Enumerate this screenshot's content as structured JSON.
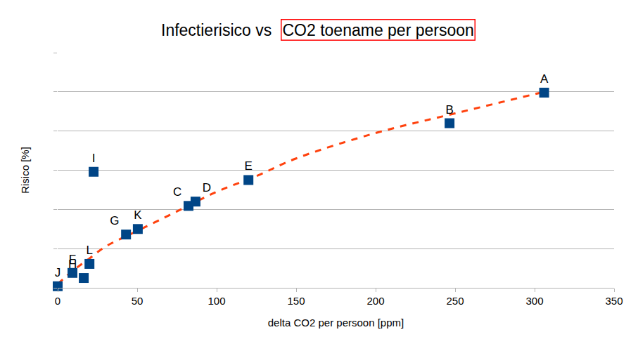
{
  "chart_data": {
    "type": "scatter",
    "title": "Infectierisico vs CO2 toename per persoon",
    "title_highlight": "CO2 toename per persoon",
    "x_label": "delta CO2 per persoon [ppm]",
    "y_label": "Risico [%]",
    "xlim": [
      0,
      350
    ],
    "xticks": [
      0,
      50,
      100,
      150,
      200,
      250,
      300,
      350
    ],
    "ylim": [
      0,
      6
    ],
    "yticks": [
      0,
      1,
      2,
      3,
      4,
      5,
      6
    ],
    "grid": true,
    "tick_labels": "x",
    "series": [
      {
        "type": "scatter",
        "marker": "square",
        "color": "#004586",
        "labels": [
          "A",
          "B",
          "C",
          "D",
          "E",
          "F",
          "G",
          "H",
          "I",
          "J",
          "K",
          "L"
        ],
        "x": [
          306,
          246.5,
          82.3,
          86.7,
          120,
          9.3,
          43,
          16.4,
          22.6,
          0,
          50.4,
          20
        ],
        "values": [
          4.98,
          4.2,
          2.09,
          2.2,
          2.75,
          0.38,
          1.36,
          0.25,
          2.96,
          0.04,
          1.5,
          0.61
        ]
      },
      {
        "type": "line",
        "line_style": "dashed",
        "color": "#ff420e",
        "x": [
          0,
          10,
          20,
          30,
          50,
          75,
          100,
          125,
          150,
          200,
          250,
          306
        ],
        "values": [
          0.1,
          0.45,
          0.75,
          1.05,
          1.45,
          1.95,
          2.45,
          2.85,
          3.3,
          3.95,
          4.45,
          5.0
        ]
      }
    ]
  }
}
